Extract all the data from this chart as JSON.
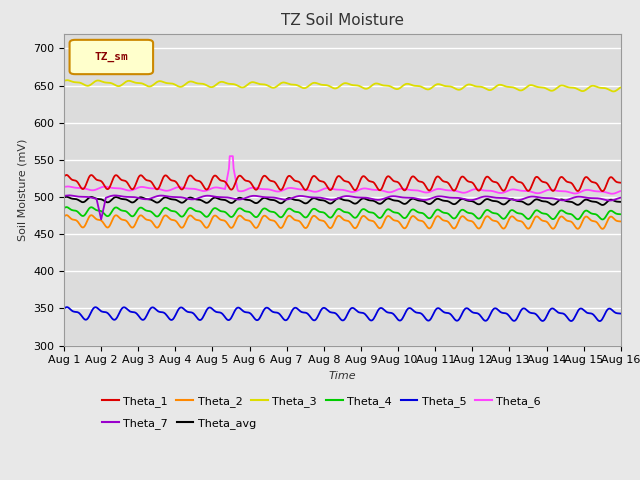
{
  "title": "TZ Soil Moisture",
  "xlabel": "Time",
  "ylabel": "Soil Moisture (mV)",
  "ylim": [
    300,
    720
  ],
  "yticks": [
    300,
    350,
    400,
    450,
    500,
    550,
    600,
    650,
    700
  ],
  "num_days": 15,
  "points_per_day": 48,
  "legend_label": "TZ_sm",
  "series": {
    "Theta_1": {
      "color": "#dd0000",
      "base": 521,
      "amp": 8,
      "freq": 1.5,
      "trend": -3
    },
    "Theta_2": {
      "color": "#ff8800",
      "base": 468,
      "amp": 7,
      "freq": 1.5,
      "trend": -2
    },
    "Theta_3": {
      "color": "#dddd00",
      "base": 654,
      "amp": 3,
      "freq": 1.2,
      "trend": -8
    },
    "Theta_4": {
      "color": "#00cc00",
      "base": 481,
      "amp": 5,
      "freq": 1.5,
      "trend": -5
    },
    "Theta_5": {
      "color": "#0000dd",
      "base": 344,
      "amp": 7,
      "freq": 1.3,
      "trend": -2
    },
    "Theta_6": {
      "color": "#ff44ff",
      "base": 512,
      "amp": 2,
      "freq": 1.0,
      "trend": -5
    },
    "Theta_7": {
      "color": "#9900cc",
      "base": 500,
      "amp": 2,
      "freq": 0.8,
      "trend": -2
    },
    "Theta_avg": {
      "color": "#000000",
      "base": 497,
      "amp": 3,
      "freq": 1.5,
      "trend": -4
    }
  },
  "spike_series": "Theta_6",
  "spike_day": 4.5,
  "spike_value": 555,
  "spike_base": 500,
  "dip_series": "Theta_7",
  "dip_day": 1.0,
  "dip_value": 470,
  "background_color": "#e8e8e8",
  "plot_bg": "#dcdcdc",
  "grid_color": "#ffffff",
  "title_fontsize": 11,
  "axis_fontsize": 8,
  "tick_fontsize": 8,
  "legend_order": [
    "Theta_1",
    "Theta_2",
    "Theta_3",
    "Theta_4",
    "Theta_5",
    "Theta_6",
    "Theta_7",
    "Theta_avg"
  ]
}
